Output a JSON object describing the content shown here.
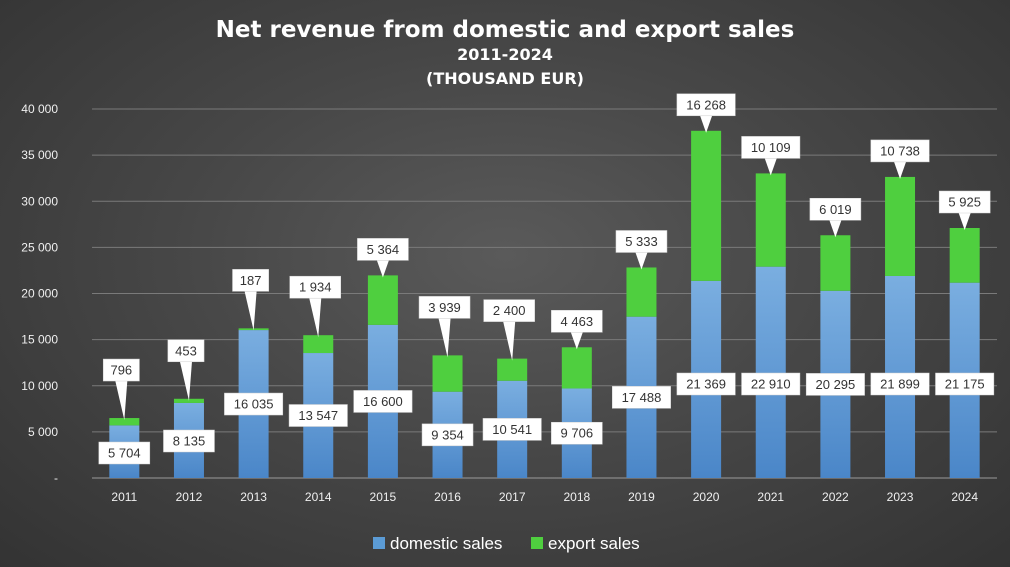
{
  "colors": {
    "domestic": "#5b9bd5",
    "export": "#4fcf3f",
    "grid": "#7a7a7a",
    "label_bg": "#ffffff"
  },
  "chart_data": {
    "type": "bar",
    "stacked": true,
    "title": "Net revenue from domestic and export sales",
    "subtitle": "2011-2024",
    "subtitle2": "(THOUSAND EUR)",
    "categories": [
      "2011",
      "2012",
      "2013",
      "2014",
      "2015",
      "2016",
      "2017",
      "2018",
      "2019",
      "2020",
      "2021",
      "2022",
      "2023",
      "2024"
    ],
    "series": [
      {
        "name": "domestic sales",
        "values": [
          5704,
          8135,
          16035,
          13547,
          16600,
          9354,
          10541,
          9706,
          17488,
          21369,
          22910,
          20295,
          21899,
          21175
        ],
        "labels": [
          "5 704",
          "8 135",
          "16 035",
          "13 547",
          "16 600",
          "9 354",
          "10 541",
          "9 706",
          "17 488",
          "21 369",
          "22 910",
          "20 295",
          "21 899",
          "21 175"
        ]
      },
      {
        "name": "export sales",
        "values": [
          796,
          453,
          187,
          1934,
          5364,
          3939,
          2400,
          4463,
          5333,
          16268,
          10109,
          6019,
          10738,
          5925
        ],
        "labels": [
          "796",
          "453",
          "187",
          "1 934",
          "5 364",
          "3 939",
          "2 400",
          "4 463",
          "5 333",
          "16 268",
          "10 109",
          "6 019",
          "10 738",
          "5 925"
        ]
      }
    ],
    "ylim": [
      0,
      40000
    ],
    "yticks": [
      0,
      5000,
      10000,
      15000,
      20000,
      25000,
      30000,
      35000,
      40000
    ],
    "ytick_labels": [
      "-",
      "5 000",
      "10 000",
      "15 000",
      "20 000",
      "25 000",
      "30 000",
      "35 000",
      "40 000"
    ],
    "grid": true,
    "legend_position": "bottom"
  }
}
